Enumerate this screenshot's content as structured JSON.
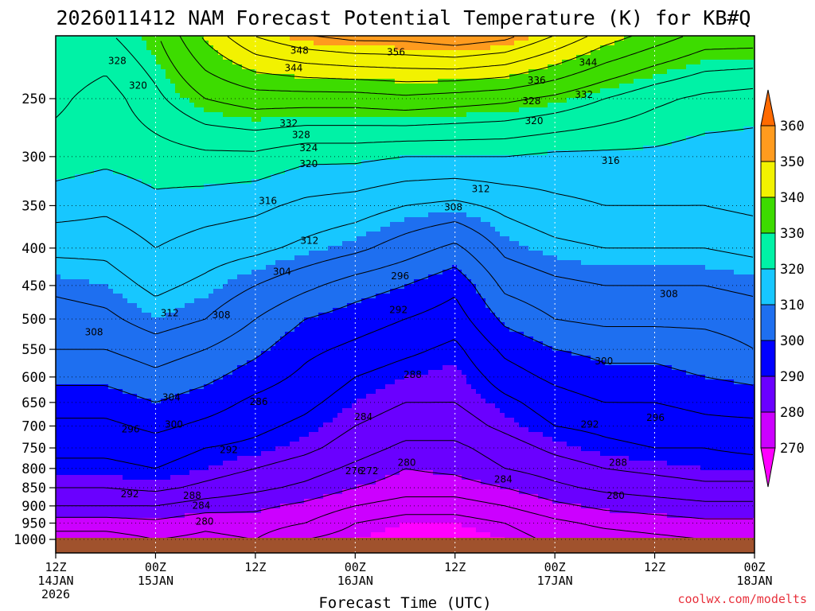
{
  "chart_data": {
    "type": "heatmap",
    "title": "2026011412 NAM Forecast Potential Temperature (K) for KB#Q",
    "xlabel": "Forecast Time (UTC)",
    "ylabel": "",
    "y_scale": "pressure (hPa), inverted",
    "ylim": [
      1000,
      200
    ],
    "y_ticks": [
      "250",
      "300",
      "350",
      "400",
      "450",
      "500",
      "550",
      "600",
      "650",
      "700",
      "750",
      "800",
      "850",
      "900",
      "950",
      "1000"
    ],
    "x_ticks": [
      {
        "hour": 0,
        "line1": "12Z",
        "line2": "14JAN",
        "line3": "2026"
      },
      {
        "hour": 12,
        "line1": "00Z",
        "line2": "15JAN",
        "line3": ""
      },
      {
        "hour": 24,
        "line1": "12Z",
        "line2": "",
        "line3": ""
      },
      {
        "hour": 36,
        "line1": "00Z",
        "line2": "16JAN",
        "line3": ""
      },
      {
        "hour": 48,
        "line1": "12Z",
        "line2": "",
        "line3": ""
      },
      {
        "hour": 60,
        "line1": "00Z",
        "line2": "17JAN",
        "line3": ""
      },
      {
        "hour": 72,
        "line1": "12Z",
        "line2": "",
        "line3": ""
      },
      {
        "hour": 84,
        "line1": "00Z",
        "line2": "18JAN",
        "line3": ""
      }
    ],
    "x_hours": [
      0,
      6,
      12,
      18,
      24,
      30,
      36,
      42,
      48,
      54,
      60,
      66,
      72,
      78,
      84
    ],
    "levels_hpa": [
      1000,
      950,
      900,
      850,
      800,
      750,
      700,
      650,
      600,
      550,
      500,
      450,
      400,
      350,
      300,
      250,
      200
    ],
    "theta_K": [
      [
        274,
        274,
        276,
        275,
        276,
        272,
        270,
        268,
        268,
        270,
        273,
        274,
        275,
        276,
        276
      ],
      [
        278,
        278,
        279,
        277,
        278,
        276,
        272,
        270,
        270,
        272,
        275,
        277,
        278,
        279,
        279
      ],
      [
        284,
        284,
        284,
        282,
        281,
        279,
        276,
        274,
        274,
        276,
        279,
        281,
        282,
        283,
        283
      ],
      [
        288,
        288,
        289,
        287,
        285,
        283,
        280,
        278,
        278,
        280,
        283,
        285,
        286,
        287,
        287
      ],
      [
        291,
        291,
        292,
        290,
        288,
        286,
        283,
        280,
        281,
        284,
        286,
        288,
        289,
        290,
        290
      ],
      [
        293,
        293,
        294,
        292,
        291,
        289,
        286,
        283,
        283,
        286,
        289,
        291,
        292,
        292,
        293
      ],
      [
        295,
        295,
        297,
        295,
        293,
        291,
        288,
        286,
        286,
        289,
        292,
        293,
        294,
        295,
        295
      ],
      [
        298,
        298,
        300,
        298,
        295,
        293,
        290,
        288,
        288,
        291,
        294,
        296,
        296,
        297,
        298
      ],
      [
        301,
        301,
        303,
        301,
        298,
        295,
        292,
        290,
        289,
        294,
        297,
        299,
        299,
        300,
        301
      ],
      [
        304,
        304,
        306,
        304,
        301,
        297,
        295,
        293,
        291,
        297,
        300,
        301,
        301,
        302,
        304
      ],
      [
        306,
        307,
        310,
        308,
        304,
        300,
        298,
        296,
        294,
        301,
        304,
        305,
        305,
        305,
        306
      ],
      [
        309,
        310,
        313,
        311,
        308,
        305,
        302,
        300,
        297,
        305,
        307,
        308,
        308,
        308,
        309
      ],
      [
        313,
        313,
        316,
        314,
        313,
        311,
        309,
        306,
        303,
        309,
        311,
        312,
        312,
        312,
        313
      ],
      [
        318,
        317,
        319,
        318,
        317,
        315,
        314,
        312,
        311,
        313,
        315,
        316,
        316,
        316,
        317
      ],
      [
        322,
        321,
        322,
        323,
        323,
        321,
        321,
        320,
        320,
        320,
        319,
        319,
        319,
        318,
        318
      ],
      [
        325,
        322,
        327,
        332,
        334,
        334,
        334,
        335,
        334,
        333,
        331,
        328,
        325,
        323,
        322
      ],
      [
        328,
        328,
        332,
        342,
        350,
        354,
        356,
        356,
        358,
        356,
        350,
        344,
        340,
        336,
        336
      ]
    ],
    "contour_interval_K": 4,
    "fill_interval_K": 10,
    "colorbar": {
      "levels": [
        270,
        280,
        290,
        300,
        310,
        320,
        330,
        340,
        350,
        360
      ],
      "labels": [
        "270",
        "280",
        "290",
        "300",
        "310",
        "320",
        "330",
        "340",
        "350",
        "360"
      ],
      "colors": [
        "#ff00ff",
        "#cc00ff",
        "#6a00ff",
        "#0000ff",
        "#1e6ff0",
        "#17c7ff",
        "#00f2a6",
        "#3ddc00",
        "#f2f200",
        "#ff9b1e",
        "#ff6a00"
      ]
    },
    "contour_labels": [
      {
        "text": "328",
        "hour": 7.4,
        "p": 222
      },
      {
        "text": "320",
        "hour": 9.9,
        "p": 240
      },
      {
        "text": "348",
        "hour": 29.3,
        "p": 215
      },
      {
        "text": "344",
        "hour": 28.6,
        "p": 227
      },
      {
        "text": "356",
        "hour": 40.9,
        "p": 216
      },
      {
        "text": "344",
        "hour": 64.0,
        "p": 223
      },
      {
        "text": "336",
        "hour": 57.8,
        "p": 236
      },
      {
        "text": "332",
        "hour": 63.5,
        "p": 247
      },
      {
        "text": "328",
        "hour": 57.2,
        "p": 252
      },
      {
        "text": "320",
        "hour": 57.5,
        "p": 268
      },
      {
        "text": "332",
        "hour": 28.0,
        "p": 270
      },
      {
        "text": "328",
        "hour": 29.5,
        "p": 280
      },
      {
        "text": "324",
        "hour": 30.4,
        "p": 292
      },
      {
        "text": "320",
        "hour": 30.4,
        "p": 307
      },
      {
        "text": "316",
        "hour": 66.7,
        "p": 304
      },
      {
        "text": "316",
        "hour": 25.5,
        "p": 345
      },
      {
        "text": "312",
        "hour": 51.1,
        "p": 332
      },
      {
        "text": "308",
        "hour": 47.8,
        "p": 352
      },
      {
        "text": "312",
        "hour": 30.5,
        "p": 391
      },
      {
        "text": "304",
        "hour": 27.2,
        "p": 431
      },
      {
        "text": "296",
        "hour": 41.4,
        "p": 437
      },
      {
        "text": "308",
        "hour": 73.7,
        "p": 462
      },
      {
        "text": "292",
        "hour": 41.2,
        "p": 486
      },
      {
        "text": "312",
        "hour": 13.7,
        "p": 491
      },
      {
        "text": "308",
        "hour": 19.9,
        "p": 494
      },
      {
        "text": "308",
        "hour": 4.6,
        "p": 521
      },
      {
        "text": "300",
        "hour": 65.9,
        "p": 571
      },
      {
        "text": "288",
        "hour": 42.9,
        "p": 596
      },
      {
        "text": "304",
        "hour": 13.9,
        "p": 640
      },
      {
        "text": "286",
        "hour": 24.4,
        "p": 649
      },
      {
        "text": "284",
        "hour": 37.0,
        "p": 680
      },
      {
        "text": "296",
        "hour": 9.0,
        "p": 707
      },
      {
        "text": "300",
        "hour": 14.2,
        "p": 697
      },
      {
        "text": "292",
        "hour": 64.2,
        "p": 697
      },
      {
        "text": "296",
        "hour": 72.1,
        "p": 682
      },
      {
        "text": "292",
        "hour": 20.8,
        "p": 755
      },
      {
        "text": "288",
        "hour": 67.6,
        "p": 785
      },
      {
        "text": "280",
        "hour": 42.2,
        "p": 785
      },
      {
        "text": "276",
        "hour": 35.9,
        "p": 806
      },
      {
        "text": "272",
        "hour": 37.7,
        "p": 806
      },
      {
        "text": "284",
        "hour": 53.8,
        "p": 828
      },
      {
        "text": "292",
        "hour": 8.9,
        "p": 867
      },
      {
        "text": "288",
        "hour": 16.4,
        "p": 871
      },
      {
        "text": "284",
        "hour": 17.5,
        "p": 899
      },
      {
        "text": "280",
        "hour": 17.9,
        "p": 945
      },
      {
        "text": "280",
        "hour": 67.3,
        "p": 871
      }
    ]
  },
  "credit": "coolwx.com/modelts"
}
